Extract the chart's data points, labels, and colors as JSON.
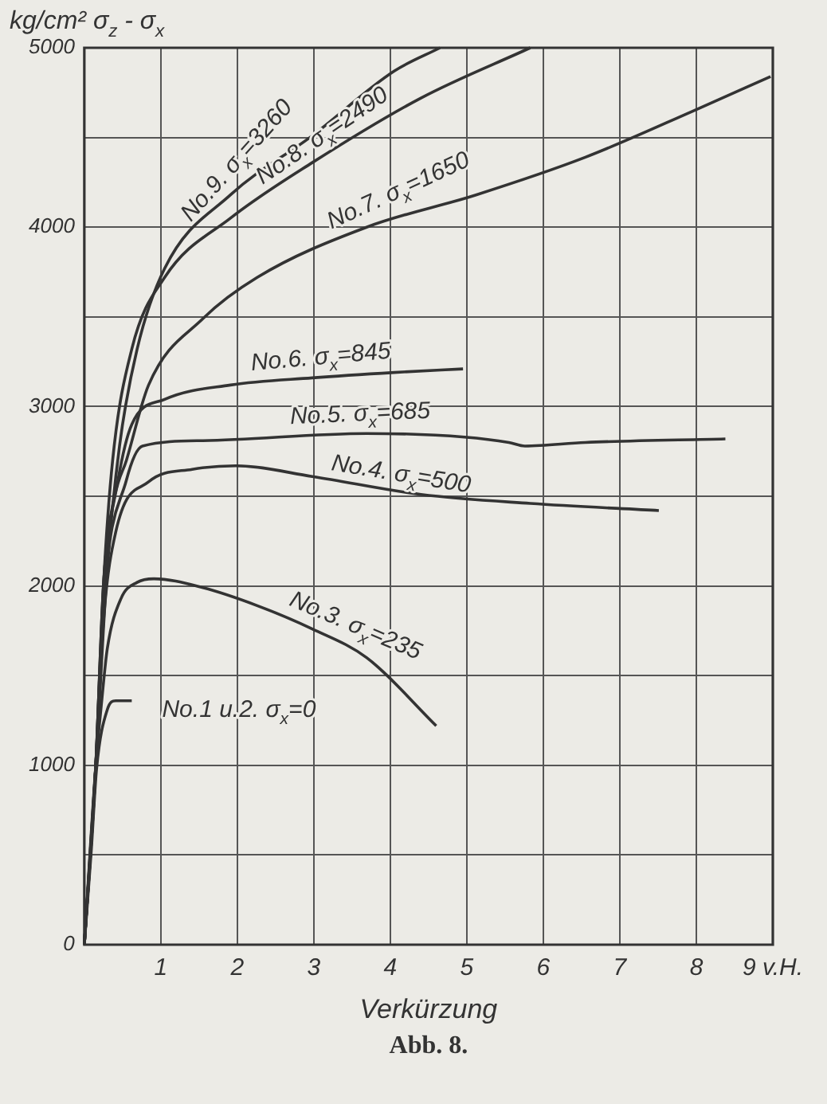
{
  "chart_data": {
    "type": "line",
    "ylabel": "kg/cm² σ$_{z}$ - σ$_{x}$",
    "xlabel": "Verkürzung",
    "annotations": [
      "Abb. 8."
    ],
    "xlim": [
      0,
      9
    ],
    "xticks": [
      1,
      2,
      3,
      4,
      5,
      6,
      7,
      8,
      {
        "value": 9,
        "label": "9 v.H."
      }
    ],
    "ylim": [
      0,
      5000
    ],
    "yticks": [
      0,
      {
        "value": 500,
        "label": null
      },
      1000,
      {
        "value": 1500,
        "label": null
      },
      2000,
      {
        "value": 2500,
        "label": null
      },
      3000,
      {
        "value": 3500,
        "label": null
      },
      4000,
      {
        "value": 4500,
        "label": null
      },
      5000
    ],
    "grid": true,
    "legend": false,
    "marker": "none",
    "line_style": "solid",
    "series": [
      {
        "name": "No.1 u.2. σ$_{x}$=0",
        "color": "#333333",
        "x": [
          0,
          0.09,
          0.16,
          0.3,
          0.41,
          0.62
        ],
        "values": [
          0,
          520,
          980,
          1310,
          1360,
          1360
        ]
      },
      {
        "name": "No.3. σ$_{x}$=235",
        "color": "#333333",
        "x": [
          0,
          0.15,
          0.23,
          0.3,
          0.48,
          0.69,
          0.91,
          1.55,
          2.26,
          2.98,
          3.69,
          4.6
        ],
        "values": [
          0,
          1000,
          1370,
          1650,
          1930,
          2020,
          2040,
          1990,
          1890,
          1760,
          1600,
          1220
        ]
      },
      {
        "name": "No.4. σ$_{x}$=500",
        "color": "#333333",
        "x": [
          0,
          0.15,
          0.25,
          0.41,
          0.84,
          1.41,
          1.98,
          2.98,
          4.4,
          5.83,
          7.51
        ],
        "values": [
          0,
          1000,
          1800,
          2300,
          2580,
          2650,
          2670,
          2610,
          2510,
          2460,
          2420
        ]
      },
      {
        "name": "No.5. σ$_{x}$=685",
        "color": "#333333",
        "x": [
          0,
          0.15,
          0.25,
          0.55,
          0.76,
          1.55,
          3.69,
          4.97,
          5.55,
          5.76,
          6.55,
          8.38
        ],
        "values": [
          0,
          1000,
          1900,
          2590,
          2780,
          2810,
          2850,
          2830,
          2800,
          2780,
          2800,
          2820
        ]
      },
      {
        "name": "No.6. σ$_{x}$=845",
        "color": "#333333",
        "x": [
          0,
          0.15,
          0.25,
          0.44,
          0.62,
          1.05,
          1.91,
          2.98,
          4.05,
          4.95
        ],
        "values": [
          0,
          1000,
          2000,
          2590,
          2900,
          3040,
          3120,
          3160,
          3190,
          3210
        ]
      },
      {
        "name": "No.7. σ$_{x}$=1650",
        "color": "#333333",
        "x": [
          0,
          0.15,
          0.25,
          0.4,
          0.55,
          0.84,
          1.55,
          2.26,
          3.69,
          5.12,
          6.55,
          7.97,
          8.97
        ],
        "values": [
          0,
          1000,
          2000,
          2500,
          2700,
          3120,
          3490,
          3720,
          4000,
          4180,
          4390,
          4650,
          4840
        ]
      },
      {
        "name": "No.8. σ$_{x}$=2490",
        "color": "#333333",
        "x": [
          0,
          0.15,
          0.25,
          0.37,
          0.62,
          1.05,
          1.91,
          2.98,
          4.4,
          5.83
        ],
        "values": [
          0,
          1000,
          2000,
          2700,
          3320,
          3720,
          4050,
          4360,
          4720,
          5000
        ]
      },
      {
        "name": "No.9. σ$_{x}$=3260",
        "color": "#333333",
        "x": [
          0,
          0.15,
          0.3,
          0.46,
          0.69,
          1.05,
          1.91,
          2.98,
          4.05,
          4.65
        ],
        "values": [
          0,
          1000,
          2100,
          2780,
          3320,
          3770,
          4180,
          4510,
          4870,
          5000
        ]
      }
    ]
  }
}
